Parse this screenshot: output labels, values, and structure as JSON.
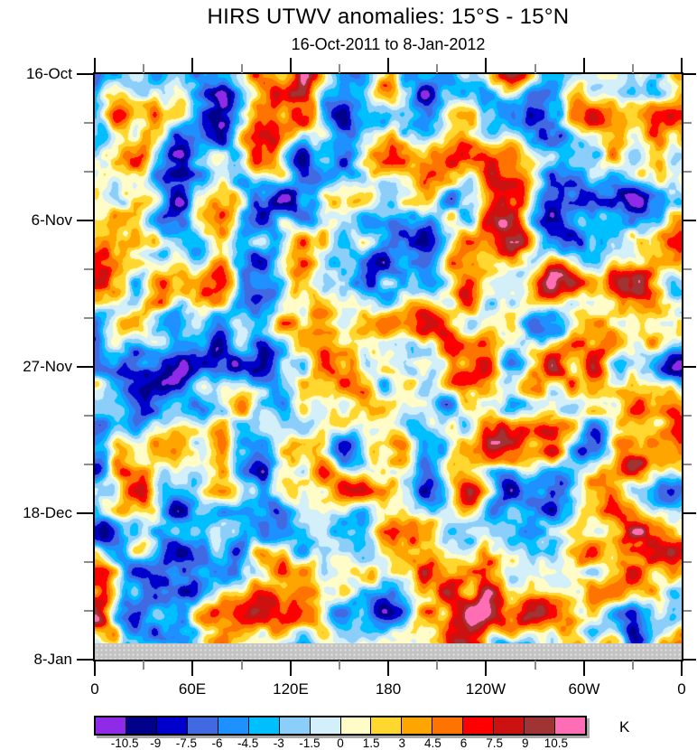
{
  "header": {
    "title": "HIRS UTWV anomalies: 15°S - 15°N",
    "subtitle": "16-Oct-2011 to 8-Jan-2012"
  },
  "chart_data": {
    "type": "heatmap",
    "variant": "filled-contour time-longitude hovmoller",
    "title": "HIRS UTWV anomalies: 15°S - 15°N",
    "subtitle": "16-Oct-2011 to 8-Jan-2012",
    "units_label": "K",
    "x_axis": {
      "tick_labels": [
        "0",
        "60E",
        "120E",
        "180",
        "120W",
        "60W",
        "0"
      ],
      "tick_values_deg": [
        0,
        60,
        120,
        180,
        240,
        300,
        360
      ],
      "minor_step_deg": 30,
      "range_deg": [
        0,
        360
      ]
    },
    "y_axis": {
      "tick_labels": [
        "16-Oct",
        "6-Nov",
        "27-Nov",
        "18-Dec",
        "8-Jan"
      ],
      "tick_values_day": [
        0,
        21,
        42,
        63,
        84
      ],
      "minor_step_day": 7,
      "range_days": [
        0,
        84
      ],
      "direction": "time-increases-downward"
    },
    "levels": [
      -10.5,
      -9,
      -7.5,
      -6,
      -4.5,
      -3,
      -1.5,
      0,
      1.5,
      3,
      4.5,
      6,
      7.5,
      9,
      10.5
    ],
    "colorbar_labels": [
      "-10.5",
      "-9",
      "-7.5",
      "-6",
      "-4.5",
      "-3",
      "-1.5",
      "0",
      "1.5",
      "3",
      "4.5",
      "6",
      "7.5",
      "9",
      "10.5"
    ],
    "palette": [
      "#8F2BE8",
      "#00008B",
      "#0000CD",
      "#4169E1",
      "#1E90FF",
      "#00BFFF",
      "#8CCEFA",
      "#D2EFFA",
      "#FFFCC8",
      "#FFD72E",
      "#FFA500",
      "#FF7300",
      "#FF0000",
      "#CC1111",
      "#A03333",
      "#FF6EB4"
    ],
    "missing_band_color": "#c3c3c3",
    "tick_colors": {
      "major": "#000000",
      "minor": "#8c8c8c"
    },
    "grid": "off",
    "legend_position": "bottom-labelbar",
    "render_hints": {
      "note": "dense raster field approximated procedurally",
      "octaves": [
        {
          "cell": 46,
          "amp": 6.3,
          "seed": 11
        },
        {
          "cell": 23,
          "amp": 3.1,
          "seed": 203
        },
        {
          "cell": 11,
          "amp": 1.5,
          "seed": 47
        }
      ],
      "scale": 1.42
    }
  }
}
